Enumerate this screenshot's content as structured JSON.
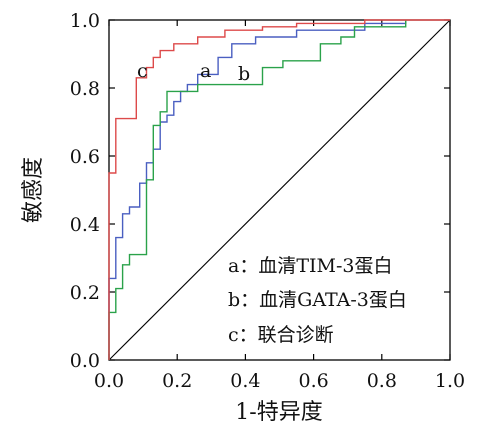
{
  "chart_data": {
    "type": "line",
    "xlabel": "1-特异度",
    "ylabel": "敏感度",
    "xlim": [
      0,
      1
    ],
    "ylim": [
      0,
      1
    ],
    "xticks": [
      "0.0",
      "0.2",
      "0.4",
      "0.6",
      "0.8",
      "1.0"
    ],
    "yticks": [
      "0.0",
      "0.2",
      "0.4",
      "0.6",
      "0.8",
      "1.0"
    ],
    "grid": false,
    "legend_position": "bottom-right",
    "reference_line": {
      "x": [
        0,
        1
      ],
      "y": [
        0,
        1
      ],
      "color": "#000000"
    },
    "legend": [
      "a：血清TIM-3蛋白",
      "b：血清GATA-3蛋白",
      "c：联合诊断"
    ],
    "series": [
      {
        "label": "a",
        "color": "#4a5fc1",
        "x": [
          0.0,
          0.0,
          0.02,
          0.02,
          0.04,
          0.04,
          0.06,
          0.06,
          0.09,
          0.09,
          0.11,
          0.11,
          0.13,
          0.13,
          0.15,
          0.15,
          0.17,
          0.17,
          0.19,
          0.19,
          0.21,
          0.21,
          0.23,
          0.23,
          0.26,
          0.26,
          0.32,
          0.32,
          0.36,
          0.36,
          0.43,
          0.43,
          0.55,
          0.55,
          0.75,
          0.75,
          0.87,
          0.87
        ],
        "y": [
          0.0,
          0.24,
          0.24,
          0.36,
          0.36,
          0.43,
          0.43,
          0.45,
          0.45,
          0.52,
          0.52,
          0.58,
          0.58,
          0.62,
          0.62,
          0.7,
          0.7,
          0.72,
          0.72,
          0.76,
          0.76,
          0.79,
          0.79,
          0.81,
          0.81,
          0.84,
          0.84,
          0.89,
          0.89,
          0.93,
          0.93,
          0.95,
          0.95,
          0.97,
          0.97,
          0.99,
          0.99,
          1.0
        ]
      },
      {
        "label": "b",
        "color": "#2aa24a",
        "x": [
          0.0,
          0.0,
          0.02,
          0.02,
          0.04,
          0.04,
          0.06,
          0.06,
          0.11,
          0.11,
          0.13,
          0.13,
          0.15,
          0.15,
          0.17,
          0.17,
          0.26,
          0.26,
          0.45,
          0.45,
          0.51,
          0.51,
          0.62,
          0.62,
          0.68,
          0.68,
          0.72,
          0.72,
          0.87,
          0.87
        ],
        "y": [
          0.0,
          0.14,
          0.14,
          0.21,
          0.21,
          0.28,
          0.28,
          0.31,
          0.31,
          0.53,
          0.53,
          0.69,
          0.69,
          0.73,
          0.73,
          0.79,
          0.79,
          0.81,
          0.81,
          0.86,
          0.86,
          0.88,
          0.88,
          0.93,
          0.93,
          0.95,
          0.95,
          0.98,
          0.98,
          1.0
        ]
      },
      {
        "label": "c",
        "color": "#dd4a4a",
        "x": [
          0.0,
          0.0,
          0.02,
          0.02,
          0.08,
          0.08,
          0.11,
          0.11,
          0.13,
          0.13,
          0.15,
          0.15,
          0.19,
          0.19,
          0.26,
          0.26,
          0.34,
          0.34,
          0.45,
          0.45,
          0.55,
          0.55,
          0.75,
          0.75,
          1.0
        ],
        "y": [
          0.0,
          0.55,
          0.55,
          0.71,
          0.71,
          0.83,
          0.83,
          0.86,
          0.86,
          0.89,
          0.89,
          0.91,
          0.91,
          0.93,
          0.93,
          0.95,
          0.95,
          0.97,
          0.97,
          0.98,
          0.98,
          0.99,
          0.99,
          1.0,
          1.0
        ]
      }
    ]
  }
}
